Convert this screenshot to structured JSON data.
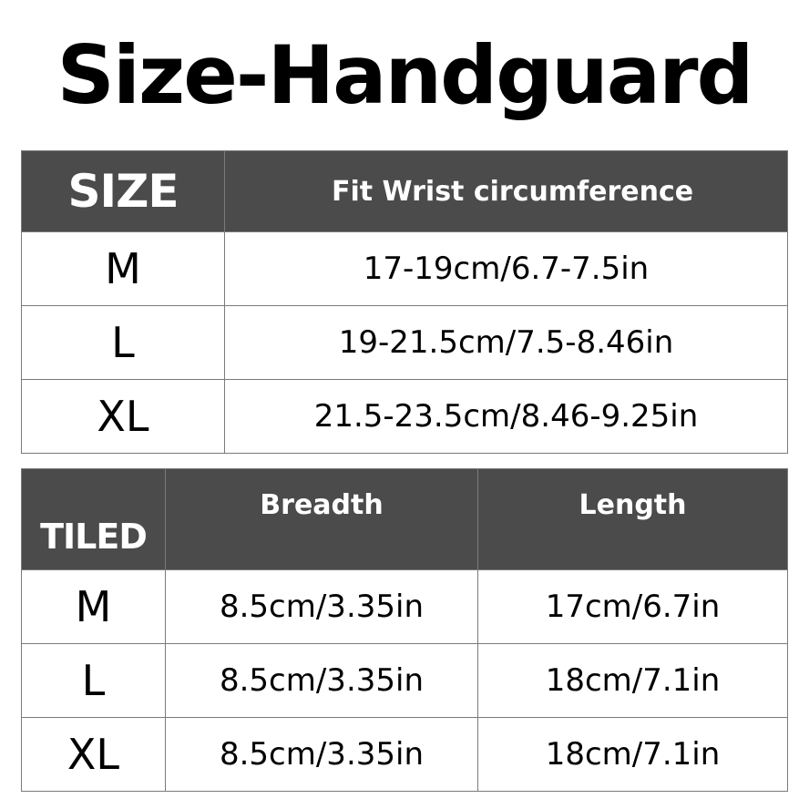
{
  "title": "Size-Handguard",
  "colors": {
    "header_bg": "#4b4b4b",
    "header_text": "#ffffff",
    "border": "#7a7a7a"
  },
  "size_table": {
    "headers": [
      "SIZE",
      "Fit Wrist circumference"
    ],
    "rows": [
      [
        "M",
        "17-19cm/6.7-7.5in"
      ],
      [
        "L",
        "19-21.5cm/7.5-8.46in"
      ],
      [
        "XL",
        "21.5-23.5cm/8.46-9.25in"
      ]
    ]
  },
  "tiled_table": {
    "headers": [
      "TILED",
      "Breadth",
      "Length"
    ],
    "rows": [
      [
        "M",
        "8.5cm/3.35in",
        "17cm/6.7in"
      ],
      [
        "L",
        "8.5cm/3.35in",
        "18cm/7.1in"
      ],
      [
        "XL",
        "8.5cm/3.35in",
        "18cm/7.1in"
      ]
    ]
  }
}
